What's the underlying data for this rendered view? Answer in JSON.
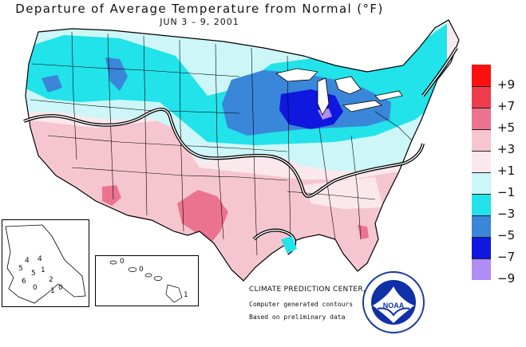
{
  "title": "Departure of Average Temperature from Normal (°F)",
  "subtitle": "JUN 3 – 9, 2001",
  "legend": [
    {
      "label": "+9",
      "color": "#ff1010"
    },
    {
      "label": "+7",
      "color": "#ee3c4c"
    },
    {
      "label": "+5",
      "color": "#ec7390"
    },
    {
      "label": "+3",
      "color": "#f6c6d0"
    },
    {
      "label": "+1",
      "color": "#fbe8ec"
    },
    {
      "label": "−1",
      "color": "#ccf6f8"
    },
    {
      "label": "−3",
      "color": "#22e2ea"
    },
    {
      "label": "−5",
      "color": "#3a86d8"
    },
    {
      "label": "−7",
      "color": "#1018e0"
    },
    {
      "label": "−9",
      "color": "#b08cf4"
    }
  ],
  "alaska_labels": [
    "4",
    "4",
    "5",
    "1",
    "5",
    "2",
    "6",
    "0",
    "0",
    "1"
  ],
  "hawaii_labels": [
    "0",
    "0",
    "1"
  ],
  "credits": {
    "center": "CLIMATE PREDICTION CENTER, NOAA",
    "line1": "Computer generated contours",
    "line2": "Based on preliminary data"
  },
  "logo": {
    "text": "NOAA"
  }
}
